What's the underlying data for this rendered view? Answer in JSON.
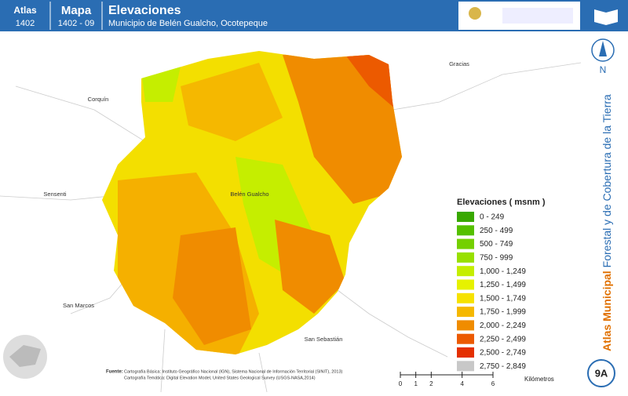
{
  "header": {
    "atlas_label": "Atlas",
    "atlas_code": "1402",
    "map_label": "Mapa",
    "map_code": "1402 - 09",
    "title": "Elevaciones",
    "subtitle": "Municipio de Belén Gualcho, Ocotepeque"
  },
  "places": [
    "Gracias",
    "Corquín",
    "Sensenti",
    "Belén Gualcho",
    "San Marcos",
    "San Sebastián"
  ],
  "legend": {
    "title": "Elevaciones ( msnm )",
    "items": [
      {
        "label": "0 - 249",
        "color": "#38a800"
      },
      {
        "label": "250 - 499",
        "color": "#55c000"
      },
      {
        "label": "500 - 749",
        "color": "#74d000"
      },
      {
        "label": "750 - 999",
        "color": "#98e000"
      },
      {
        "label": "1,000 - 1,249",
        "color": "#c5ee00"
      },
      {
        "label": "1,250 - 1,499",
        "color": "#e6f200"
      },
      {
        "label": "1,500 - 1,749",
        "color": "#f6e200"
      },
      {
        "label": "1,750 - 1,999",
        "color": "#f5b800"
      },
      {
        "label": "2,000 - 2,249",
        "color": "#f08c00"
      },
      {
        "label": "2,250 - 2,499",
        "color": "#ec5a00"
      },
      {
        "label": "2,500 - 2,749",
        "color": "#e43000"
      },
      {
        "label": "2,750 - 2,849",
        "color": "#c8c8c8"
      }
    ]
  },
  "source": {
    "label": "Fuente:",
    "line1": "Cartografía Básica: Instituto Geográfico Nacional (IGN), Sistema Nacional de Información Territorial (SINIT), 2013)",
    "line2": "Cartografía Temática: Digital Elevation Model, United States Geological Survey (USGS-NASA,2014)"
  },
  "scale": {
    "ticks": [
      0,
      1,
      2,
      4,
      6
    ],
    "unit": "Kilómetros"
  },
  "side_title": {
    "bold": "Atlas Municipal",
    "rest": "Forestal y de Cobertura de la Tierra"
  },
  "north": "N",
  "page": "9A"
}
